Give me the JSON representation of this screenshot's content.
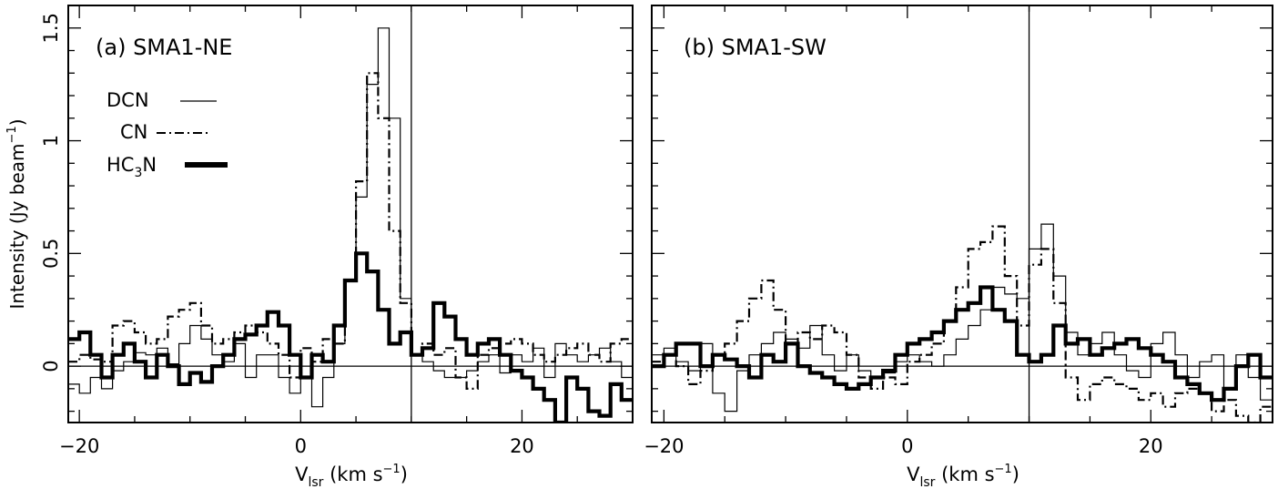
{
  "figure": {
    "ylabel": "Intensity (Jy beam",
    "ylabel_sup": "−1",
    "ylabel_close": ")",
    "xlabel_v": "V",
    "xlabel_sub": "lsr",
    "xlabel_units": "(km s",
    "xlabel_sup": "−1",
    "xlabel_close": ")"
  },
  "chart_data": [
    {
      "type": "line",
      "title": "(a) SMA1-NE",
      "xlim": [
        -21,
        30
      ],
      "ylim": [
        -0.25,
        1.6
      ],
      "x_ticks": [
        -20,
        0,
        20
      ],
      "y_ticks": [
        0,
        0.5,
        1,
        1.5
      ],
      "x_tick_labels": [
        "−20",
        "0",
        "20"
      ],
      "y_tick_labels": [
        "0",
        "0.5",
        "1",
        "1.5"
      ],
      "vline": 10,
      "hline": 0,
      "step_width": 1.0,
      "grid": false,
      "legend_position": "upper-left",
      "series": [
        {
          "name": "DCN",
          "style": "thin-solid",
          "x": [
            -21,
            -20,
            -19,
            -18,
            -17,
            -16,
            -15,
            -14,
            -13,
            -12,
            -11,
            -10,
            -9,
            -8,
            -7,
            -6,
            -5,
            -4,
            -3,
            -2,
            -1,
            0,
            1,
            2,
            3,
            4,
            5,
            6,
            7,
            8,
            9,
            10,
            11,
            12,
            13,
            14,
            15,
            16,
            17,
            18,
            19,
            20,
            21,
            22,
            23,
            24,
            25,
            26,
            27,
            28,
            29
          ],
          "y": [
            -0.08,
            -0.12,
            -0.05,
            -0.1,
            -0.02,
            0.02,
            0.06,
            0.05,
            0.08,
            0.01,
            0.1,
            0.18,
            0.12,
            0.05,
            0.02,
            0.1,
            -0.05,
            0.05,
            0.05,
            -0.05,
            -0.12,
            -0.05,
            -0.18,
            -0.05,
            0.1,
            0.38,
            0.75,
            1.25,
            1.5,
            1.1,
            0.3,
            0.05,
            0.02,
            -0.02,
            -0.05,
            -0.05,
            -0.02,
            0.02,
            0.05,
            -0.03,
            0.05,
            0.02,
            0.08,
            -0.05,
            0.1,
            0.05,
            0.02,
            0.05,
            0.08,
            0.02,
            -0.05
          ]
        },
        {
          "name": "CN",
          "style": "dash-dot",
          "x": [
            -21,
            -20,
            -19,
            -18,
            -17,
            -16,
            -15,
            -14,
            -13,
            -12,
            -11,
            -10,
            -9,
            -8,
            -7,
            -6,
            -5,
            -4,
            -3,
            -2,
            -1,
            0,
            1,
            2,
            3,
            4,
            5,
            6,
            7,
            8,
            9,
            10,
            11,
            12,
            13,
            14,
            15,
            16,
            17,
            18,
            19,
            20,
            21,
            22,
            23,
            24,
            25,
            26,
            27,
            28,
            29
          ],
          "y": [
            0.02,
            0.05,
            0.03,
            0.02,
            0.18,
            0.2,
            0.15,
            0.1,
            0.12,
            0.22,
            0.25,
            0.28,
            0.18,
            0.1,
            0.12,
            0.15,
            0.18,
            0.15,
            0.1,
            0.05,
            -0.05,
            0.08,
            0.02,
            0.12,
            0.1,
            0.38,
            0.82,
            1.3,
            1.1,
            0.6,
            0.28,
            0.05,
            0.1,
            0.05,
            0.08,
            -0.05,
            -0.1,
            0.05,
            0.08,
            0.1,
            0.12,
            0.1,
            0.05,
            0.02,
            0.05,
            0.08,
            0.1,
            0.05,
            0.02,
            0.1,
            0.12
          ]
        },
        {
          "name": "HC3N",
          "style": "thick-solid",
          "x": [
            -21,
            -20,
            -19,
            -18,
            -17,
            -16,
            -15,
            -14,
            -13,
            -12,
            -11,
            -10,
            -9,
            -8,
            -7,
            -6,
            -5,
            -4,
            -3,
            -2,
            -1,
            0,
            1,
            2,
            3,
            4,
            5,
            6,
            7,
            8,
            9,
            10,
            11,
            12,
            13,
            14,
            15,
            16,
            17,
            18,
            19,
            20,
            21,
            22,
            23,
            24,
            25,
            26,
            27,
            28,
            29
          ],
          "y": [
            0.12,
            0.15,
            0.05,
            -0.05,
            0.05,
            0.1,
            0.02,
            -0.05,
            0.05,
            0.0,
            -0.08,
            -0.03,
            -0.07,
            0.0,
            0.05,
            0.12,
            0.14,
            0.18,
            0.24,
            0.18,
            0.05,
            -0.05,
            0.05,
            0.02,
            0.18,
            0.38,
            0.5,
            0.42,
            0.25,
            0.1,
            0.15,
            0.05,
            0.08,
            0.28,
            0.22,
            0.12,
            0.05,
            0.1,
            0.12,
            0.05,
            -0.02,
            -0.05,
            -0.1,
            -0.15,
            -0.25,
            -0.05,
            -0.1,
            -0.2,
            -0.22,
            -0.08,
            -0.15
          ]
        }
      ]
    },
    {
      "type": "line",
      "title": "(b) SMA1-SW",
      "xlim": [
        -21,
        30
      ],
      "ylim": [
        -0.25,
        1.6
      ],
      "x_ticks": [
        -20,
        0,
        20
      ],
      "y_ticks": [
        0,
        0.5,
        1,
        1.5
      ],
      "x_tick_labels": [
        "−20",
        "0",
        "20"
      ],
      "vline": 10,
      "hline": 0,
      "step_width": 1.0,
      "grid": false,
      "series": [
        {
          "name": "DCN",
          "style": "thin-solid",
          "x": [
            -21,
            -20,
            -19,
            -18,
            -17,
            -16,
            -15,
            -14,
            -13,
            -12,
            -11,
            -10,
            -9,
            -8,
            -7,
            -6,
            -5,
            -4,
            -3,
            -2,
            -1,
            0,
            1,
            2,
            3,
            4,
            5,
            6,
            7,
            8,
            9,
            10,
            11,
            12,
            13,
            14,
            15,
            16,
            17,
            18,
            19,
            20,
            21,
            22,
            23,
            24,
            25,
            26,
            27,
            28,
            29
          ],
          "y": [
            0.05,
            0.08,
            0.02,
            -0.02,
            0.1,
            -0.12,
            -0.2,
            -0.02,
            0.05,
            0.1,
            0.15,
            0.12,
            0.08,
            0.18,
            0.05,
            -0.02,
            0.05,
            -0.02,
            -0.05,
            -0.03,
            0.02,
            0.05,
            0.02,
            0.0,
            0.05,
            0.12,
            0.18,
            0.25,
            0.35,
            0.32,
            0.3,
            0.52,
            0.63,
            0.4,
            0.15,
            0.05,
            0.1,
            0.15,
            0.05,
            -0.02,
            -0.05,
            0.1,
            0.15,
            0.05,
            -0.05,
            0.02,
            0.05,
            -0.1,
            0.05,
            -0.05,
            -0.15
          ]
        },
        {
          "name": "CN",
          "style": "dash-dot",
          "x": [
            -21,
            -20,
            -19,
            -18,
            -17,
            -16,
            -15,
            -14,
            -13,
            -12,
            -11,
            -10,
            -9,
            -8,
            -7,
            -6,
            -5,
            -4,
            -3,
            -2,
            -1,
            0,
            1,
            2,
            3,
            4,
            5,
            6,
            7,
            8,
            9,
            10,
            11,
            12,
            13,
            14,
            15,
            16,
            17,
            18,
            19,
            20,
            21,
            22,
            23,
            24,
            25,
            26,
            27,
            28,
            29
          ],
          "y": [
            0.02,
            0.05,
            0.0,
            -0.08,
            -0.02,
            0.05,
            0.1,
            0.2,
            0.3,
            0.38,
            0.25,
            0.1,
            0.15,
            0.12,
            0.18,
            0.15,
            0.05,
            -0.05,
            -0.1,
            -0.05,
            -0.08,
            0.02,
            0.05,
            0.1,
            0.2,
            0.35,
            0.52,
            0.55,
            0.62,
            0.4,
            0.18,
            0.45,
            0.52,
            0.28,
            -0.05,
            -0.15,
            -0.08,
            -0.05,
            -0.08,
            -0.1,
            -0.15,
            -0.12,
            -0.18,
            -0.12,
            -0.1,
            -0.12,
            -0.2,
            -0.15,
            -0.22,
            -0.25,
            -0.18
          ]
        },
        {
          "name": "HC3N",
          "style": "thick-solid",
          "x": [
            -21,
            -20,
            -19,
            -18,
            -17,
            -16,
            -15,
            -14,
            -13,
            -12,
            -11,
            -10,
            -9,
            -8,
            -7,
            -6,
            -5,
            -4,
            -3,
            -2,
            -1,
            0,
            1,
            2,
            3,
            4,
            5,
            6,
            7,
            8,
            9,
            10,
            11,
            12,
            13,
            14,
            15,
            16,
            17,
            18,
            19,
            20,
            21,
            22,
            23,
            24,
            25,
            26,
            27,
            28,
            29
          ],
          "y": [
            0.0,
            0.05,
            0.1,
            0.1,
            0.0,
            0.05,
            0.03,
            0.0,
            -0.05,
            0.05,
            0.02,
            0.1,
            0.0,
            -0.03,
            -0.05,
            -0.08,
            -0.1,
            -0.08,
            -0.05,
            -0.02,
            0.05,
            0.1,
            0.12,
            0.15,
            0.2,
            0.25,
            0.28,
            0.35,
            0.25,
            0.2,
            0.05,
            0.02,
            0.05,
            0.18,
            0.1,
            0.12,
            0.05,
            0.08,
            0.1,
            0.12,
            0.08,
            0.05,
            0.02,
            -0.05,
            -0.08,
            -0.12,
            -0.15,
            -0.1,
            0.0,
            0.05,
            -0.05
          ]
        }
      ]
    }
  ]
}
